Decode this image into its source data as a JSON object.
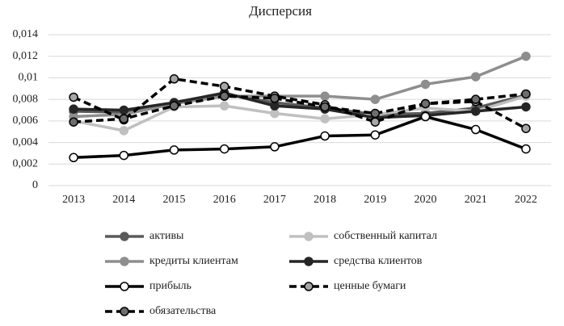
{
  "chart_data": {
    "type": "line",
    "title": "Дисперсия",
    "categories": [
      "2013",
      "2014",
      "2015",
      "2016",
      "2017",
      "2018",
      "2019",
      "2020",
      "2021",
      "2022"
    ],
    "ylim": [
      0,
      0.014
    ],
    "yticks": [
      0,
      {
        "value": 0.002,
        "label": "0,002"
      },
      {
        "value": 0.004,
        "label": "0,004"
      },
      {
        "value": 0.006,
        "label": "0,006"
      },
      {
        "value": 0.008,
        "label": "0,008"
      },
      {
        "value": 0.01,
        "label": "0,01"
      },
      {
        "value": 0.012,
        "label": "0,012"
      },
      {
        "value": 0.014,
        "label": "0,014"
      }
    ],
    "grid": true,
    "legend": "bottom",
    "series": [
      {
        "name": "активы",
        "color": "#5a5a5a",
        "marker_color": "#5a5a5a",
        "line_style": "solid",
        "values": [
          0.0069,
          0.0068,
          0.0077,
          0.0085,
          0.0077,
          0.0072,
          0.0066,
          0.0067,
          0.0072,
          0.0084
        ]
      },
      {
        "name": "собственный капитал",
        "color": "#c0c0c0",
        "marker_color": "#c0c0c0",
        "line_style": "solid",
        "values": [
          0.006,
          0.0051,
          0.0073,
          0.0074,
          0.0067,
          0.0062,
          0.0066,
          0.0072,
          0.0069,
          0.0083
        ]
      },
      {
        "name": "кредиты клиентам",
        "color": "#8e8e8e",
        "marker_color": "#8e8e8e",
        "line_style": "solid",
        "values": [
          0.0064,
          0.0066,
          0.0076,
          0.0083,
          0.0083,
          0.0083,
          0.008,
          0.0094,
          0.0101,
          0.012
        ]
      },
      {
        "name": "средства клиентов",
        "color": "#262626",
        "marker_color": "#262626",
        "line_style": "solid",
        "values": [
          0.0071,
          0.007,
          0.0077,
          0.0086,
          0.0074,
          0.0071,
          0.0063,
          0.0065,
          0.0069,
          0.0073
        ]
      },
      {
        "name": "прибыль",
        "color": "#000000",
        "marker_color": "#ffffff",
        "line_style": "solid",
        "values": [
          0.0026,
          0.0028,
          0.0033,
          0.0034,
          0.0036,
          0.0046,
          0.0047,
          0.0064,
          0.0052,
          0.0034
        ]
      },
      {
        "name": "ценные бумаги",
        "color": "#000000",
        "marker_color": "#a6a6a6",
        "line_style": "dashed",
        "values": [
          0.0082,
          0.0061,
          0.0099,
          0.0092,
          0.0083,
          0.0075,
          0.0059,
          0.0076,
          0.0078,
          0.0053
        ]
      },
      {
        "name": "обязательства",
        "color": "#000000",
        "marker_color": "#6e6e6e",
        "line_style": "dashed",
        "values": [
          0.0059,
          0.0062,
          0.0074,
          0.0083,
          0.0081,
          0.0073,
          0.0067,
          0.0076,
          0.008,
          0.0085
        ]
      }
    ]
  }
}
